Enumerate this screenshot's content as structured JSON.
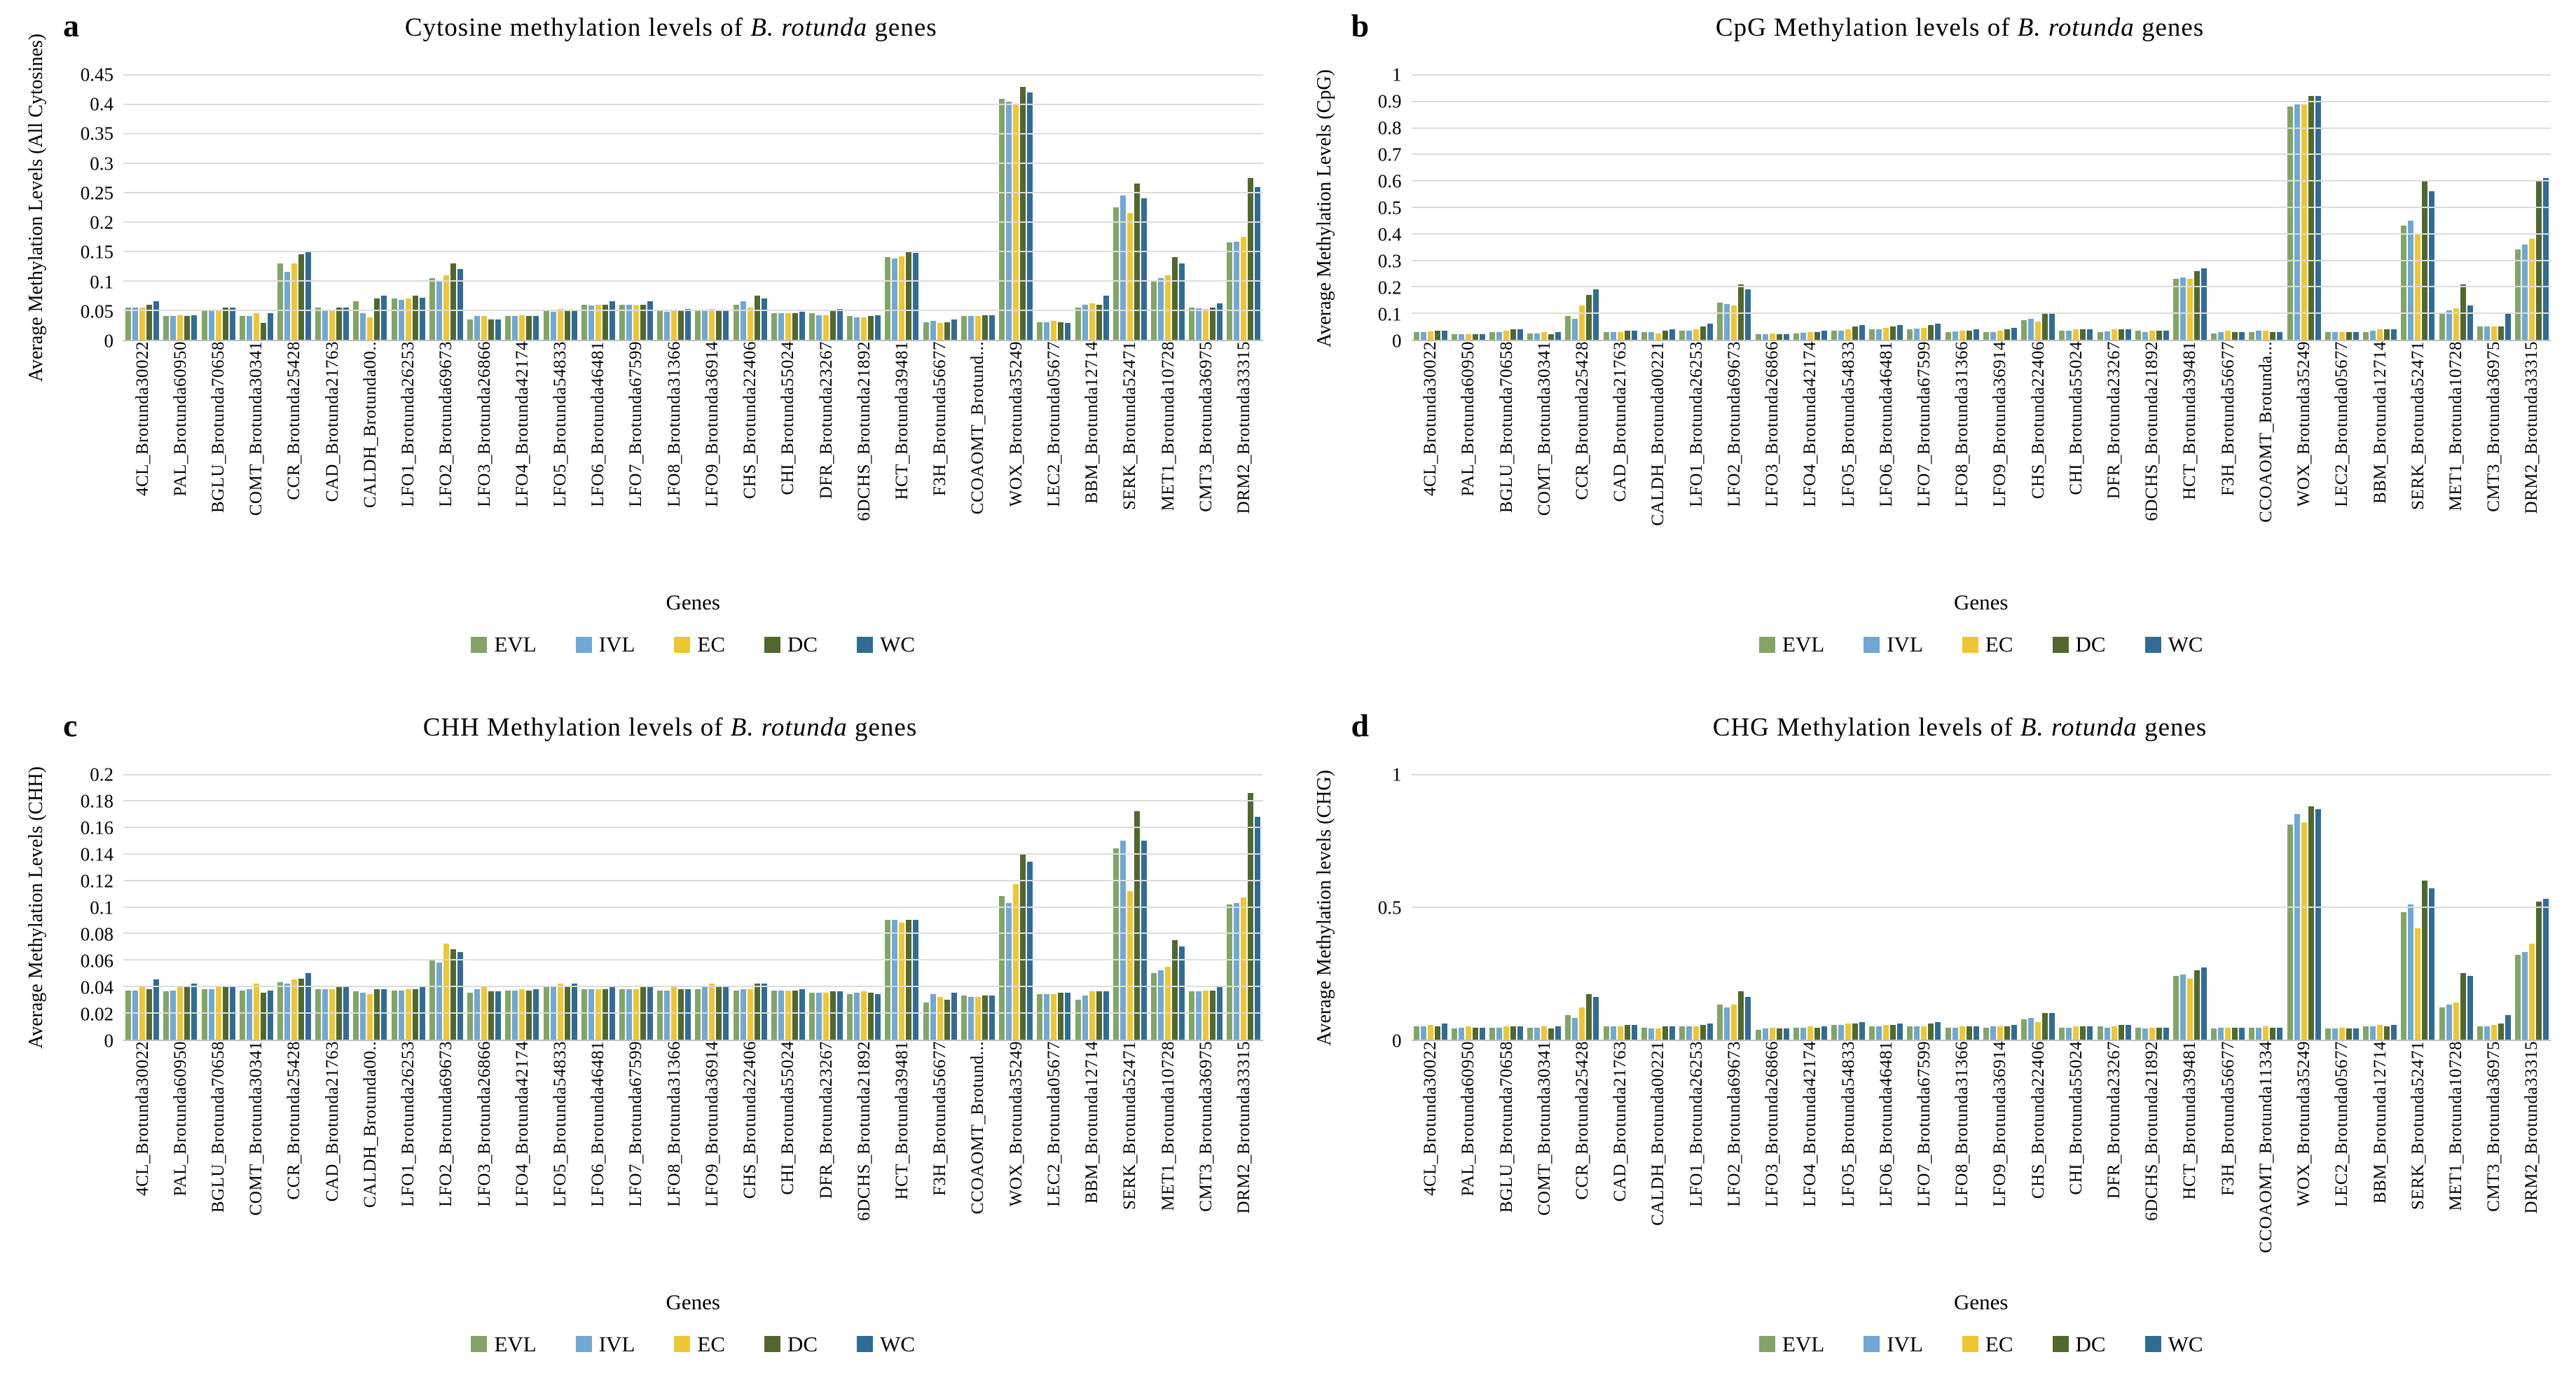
{
  "figure_xlabel": "Genes",
  "legend_labels": [
    "EVL",
    "IVL",
    "EC",
    "DC",
    "WC"
  ],
  "colors": {
    "EVL": "#82A566",
    "IVL": "#6FA8D4",
    "EC": "#EFC631",
    "DC": "#50682E",
    "WC": "#2F6D96",
    "gridline": "#DCDCDC",
    "background": "#FFFFFF",
    "text": "#000000"
  },
  "chart_data": [
    {
      "type": "bar",
      "panel": "a",
      "title": "Cytosine methylation levels of B. rotunda genes",
      "title_prefix": "Cytosine methylation levels of ",
      "title_italic": "B. rotunda",
      "title_suffix": " genes",
      "ylabel": "Average Methylation Levels (All Cytosines)",
      "xlabel": "Genes",
      "ylim": [
        0,
        0.45
      ],
      "yticks": [
        "0",
        "0.05",
        "0.1",
        "0.15",
        "0.2",
        "0.25",
        "0.3",
        "0.35",
        "0.4",
        "0.45"
      ],
      "grid": true,
      "legend_position": "bottom",
      "categories": [
        "4CL_Brotunda30022",
        "PAL_Brotunda60950",
        "BGLU_Brotunda70658",
        "COMT_Brotunda30341",
        "CCR_Brotunda25428",
        "CAD_Brotunda21763",
        "CALDH_Brotunda00..",
        "LFO1_Brotunda26253",
        "LFO2_Brotunda69673",
        "LFO3_Brotunda26866",
        "LFO4_Brotunda42174",
        "LFO5_Brotunda54833",
        "LFO6_Brotunda46481",
        "LFO7_Brotunda67599",
        "LFO8_Brotunda31366",
        "LFO9_Brotunda36914",
        "CHS_Brotunda22406",
        "CHI_Brotunda55024",
        "DFR_Brotunda23267",
        "6DCHS_Brotunda21892",
        "HCT_Brotunda39481",
        "F3H_Brotunda56677",
        "CCOAOMT_Brotund...",
        "WOX_Brotunda35249",
        "LEC2_Brotunda05677",
        "BBM_Brotunda12714",
        "SERK_Brotunda52471",
        "MET1_Brotunda10728",
        "CMT3_Brotunda36975",
        "DRM2_Brotunda33315"
      ],
      "series": [
        {
          "name": "EVL",
          "values": [
            0.055,
            0.04,
            0.05,
            0.04,
            0.13,
            0.055,
            0.065,
            0.07,
            0.105,
            0.035,
            0.04,
            0.05,
            0.06,
            0.06,
            0.05,
            0.05,
            0.06,
            0.045,
            0.045,
            0.04,
            0.14,
            0.03,
            0.04,
            0.41,
            0.03,
            0.055,
            0.225,
            0.1,
            0.055,
            0.165
          ]
        },
        {
          "name": "IVL",
          "values": [
            0.055,
            0.04,
            0.05,
            0.04,
            0.115,
            0.05,
            0.045,
            0.068,
            0.1,
            0.04,
            0.04,
            0.048,
            0.058,
            0.06,
            0.048,
            0.05,
            0.065,
            0.045,
            0.042,
            0.038,
            0.138,
            0.032,
            0.04,
            0.405,
            0.03,
            0.06,
            0.245,
            0.105,
            0.053,
            0.167
          ]
        },
        {
          "name": "EC",
          "values": [
            0.055,
            0.042,
            0.05,
            0.045,
            0.13,
            0.05,
            0.038,
            0.07,
            0.11,
            0.04,
            0.042,
            0.052,
            0.06,
            0.058,
            0.05,
            0.052,
            0.055,
            0.045,
            0.042,
            0.038,
            0.142,
            0.028,
            0.04,
            0.4,
            0.032,
            0.062,
            0.215,
            0.11,
            0.052,
            0.175
          ]
        },
        {
          "name": "DC",
          "values": [
            0.06,
            0.04,
            0.055,
            0.028,
            0.145,
            0.055,
            0.07,
            0.075,
            0.13,
            0.035,
            0.04,
            0.05,
            0.06,
            0.06,
            0.05,
            0.05,
            0.075,
            0.045,
            0.05,
            0.04,
            0.15,
            0.03,
            0.042,
            0.43,
            0.03,
            0.06,
            0.265,
            0.14,
            0.055,
            0.275
          ]
        },
        {
          "name": "WC",
          "values": [
            0.065,
            0.042,
            0.055,
            0.045,
            0.15,
            0.055,
            0.075,
            0.072,
            0.12,
            0.035,
            0.04,
            0.05,
            0.065,
            0.065,
            0.052,
            0.05,
            0.07,
            0.048,
            0.052,
            0.042,
            0.148,
            0.035,
            0.042,
            0.42,
            0.028,
            0.075,
            0.24,
            0.13,
            0.062,
            0.26
          ]
        }
      ]
    },
    {
      "type": "bar",
      "panel": "b",
      "title": "CpG Methylation levels of B. rotunda genes",
      "title_prefix": "CpG Methylation levels of ",
      "title_italic": "B. rotunda",
      "title_suffix": " genes",
      "ylabel": "Average Methylation Levels (CpG)",
      "xlabel": "Genes",
      "ylim": [
        0,
        1
      ],
      "yticks": [
        "0",
        "0.1",
        "0.2",
        "0.3",
        "0.4",
        "0.5",
        "0.6",
        "0.7",
        "0.8",
        "0.9",
        "1"
      ],
      "grid": true,
      "legend_position": "bottom",
      "categories": [
        "4CL_Brotunda30022",
        "PAL_Brotunda60950",
        "BGLU_Brotunda70658",
        "COMT_Brotunda30341",
        "CCR_Brotunda25428",
        "CAD_Brotunda21763",
        "CALDH_Brotunda00221",
        "LFO1_Brotunda26253",
        "LFO2_Brotunda69673",
        "LFO3_Brotunda26866",
        "LFO4_Brotunda42174",
        "LFO5_Brotunda54833",
        "LFO6_Brotunda46481",
        "LFO7_Brotunda67599",
        "LFO8_Brotunda31366",
        "LFO9_Brotunda36914",
        "CHS_Brotunda22406",
        "CHI_Brotunda55024",
        "DFR_Brotunda23267",
        "6DCHS_Brotunda21892",
        "HCT_Brotunda39481",
        "F3H_Brotunda56677",
        "CCOAOMT_Brotunda...",
        "WOX_Brotunda35249",
        "LEC2_Brotunda05677",
        "BBM_Brotunda12714",
        "SERK_Brotunda52471",
        "MET1_Brotunda10728",
        "CMT3_Brotunda36975",
        "DRM2_Brotunda33315"
      ],
      "series": [
        {
          "name": "EVL",
          "values": [
            0.03,
            0.02,
            0.03,
            0.025,
            0.09,
            0.03,
            0.03,
            0.035,
            0.14,
            0.02,
            0.025,
            0.035,
            0.04,
            0.04,
            0.03,
            0.03,
            0.075,
            0.035,
            0.03,
            0.035,
            0.23,
            0.025,
            0.03,
            0.88,
            0.03,
            0.03,
            0.43,
            0.1,
            0.05,
            0.34
          ]
        },
        {
          "name": "IVL",
          "values": [
            0.03,
            0.02,
            0.03,
            0.025,
            0.08,
            0.03,
            0.028,
            0.035,
            0.135,
            0.022,
            0.027,
            0.035,
            0.04,
            0.042,
            0.032,
            0.03,
            0.08,
            0.035,
            0.032,
            0.03,
            0.235,
            0.03,
            0.035,
            0.89,
            0.028,
            0.035,
            0.45,
            0.11,
            0.05,
            0.36
          ]
        },
        {
          "name": "EC",
          "values": [
            0.032,
            0.022,
            0.035,
            0.03,
            0.13,
            0.03,
            0.025,
            0.04,
            0.13,
            0.025,
            0.03,
            0.04,
            0.045,
            0.045,
            0.035,
            0.035,
            0.07,
            0.04,
            0.04,
            0.035,
            0.23,
            0.035,
            0.035,
            0.89,
            0.03,
            0.04,
            0.4,
            0.12,
            0.05,
            0.38
          ]
        },
        {
          "name": "DC",
          "values": [
            0.035,
            0.02,
            0.04,
            0.02,
            0.17,
            0.035,
            0.035,
            0.05,
            0.21,
            0.02,
            0.03,
            0.05,
            0.05,
            0.055,
            0.035,
            0.04,
            0.1,
            0.04,
            0.04,
            0.035,
            0.26,
            0.03,
            0.028,
            0.92,
            0.03,
            0.04,
            0.6,
            0.21,
            0.05,
            0.6
          ]
        },
        {
          "name": "WC",
          "values": [
            0.035,
            0.022,
            0.04,
            0.03,
            0.19,
            0.035,
            0.04,
            0.06,
            0.19,
            0.02,
            0.035,
            0.055,
            0.055,
            0.06,
            0.04,
            0.045,
            0.1,
            0.04,
            0.04,
            0.035,
            0.27,
            0.03,
            0.03,
            0.92,
            0.03,
            0.04,
            0.56,
            0.13,
            0.1,
            0.61
          ]
        }
      ]
    },
    {
      "type": "bar",
      "panel": "c",
      "title": "CHH Methylation levels of B. rotunda genes",
      "title_prefix": "CHH Methylation levels of ",
      "title_italic": "B. rotunda",
      "title_suffix": " genes",
      "ylabel": "Average Methylation Levels (CHH)",
      "xlabel": "Genes",
      "ylim": [
        0,
        0.2
      ],
      "yticks": [
        "0",
        "0.02",
        "0.04",
        "0.06",
        "0.08",
        "0.1",
        "0.12",
        "0.14",
        "0.16",
        "0.18",
        "0.2"
      ],
      "grid": true,
      "legend_position": "bottom",
      "categories": [
        "4CL_Brotunda30022",
        "PAL_Brotunda60950",
        "BGLU_Brotunda70658",
        "COMT_Brotunda30341",
        "CCR_Brotunda25428",
        "CAD_Brotunda21763",
        "CALDH_Brotunda00..",
        "LFO1_Brotunda26253",
        "LFO2_Brotunda69673",
        "LFO3_Brotunda26866",
        "LFO4_Brotunda42174",
        "LFO5_Brotunda54833",
        "LFO6_Brotunda46481",
        "LFO7_Brotunda67599",
        "LFO8_Brotunda31366",
        "LFO9_Brotunda36914",
        "CHS_Brotunda22406",
        "CHI_Brotunda55024",
        "DFR_Brotunda23267",
        "6DCHS_Brotunda21892",
        "HCT_Brotunda39481",
        "F3H_Brotunda56677",
        "CCOAOMT_Brotund...",
        "WOX_Brotunda35249",
        "LEC2_Brotunda05677",
        "BBM_Brotunda12714",
        "SERK_Brotunda52471",
        "MET1_Brotunda10728",
        "CMT3_Brotunda36975",
        "DRM2_Brotunda33315"
      ],
      "series": [
        {
          "name": "EVL",
          "values": [
            0.037,
            0.036,
            0.038,
            0.037,
            0.043,
            0.038,
            0.036,
            0.037,
            0.06,
            0.035,
            0.037,
            0.04,
            0.038,
            0.038,
            0.037,
            0.038,
            0.037,
            0.037,
            0.035,
            0.034,
            0.09,
            0.028,
            0.033,
            0.108,
            0.034,
            0.03,
            0.144,
            0.05,
            0.036,
            0.102
          ]
        },
        {
          "name": "IVL",
          "values": [
            0.037,
            0.037,
            0.038,
            0.038,
            0.042,
            0.038,
            0.035,
            0.037,
            0.058,
            0.038,
            0.037,
            0.04,
            0.038,
            0.038,
            0.037,
            0.04,
            0.038,
            0.037,
            0.035,
            0.035,
            0.09,
            0.034,
            0.032,
            0.103,
            0.034,
            0.033,
            0.15,
            0.052,
            0.036,
            0.103
          ]
        },
        {
          "name": "EC",
          "values": [
            0.04,
            0.04,
            0.04,
            0.042,
            0.045,
            0.038,
            0.034,
            0.038,
            0.072,
            0.04,
            0.038,
            0.042,
            0.038,
            0.038,
            0.04,
            0.042,
            0.038,
            0.037,
            0.035,
            0.036,
            0.088,
            0.032,
            0.032,
            0.117,
            0.034,
            0.036,
            0.112,
            0.055,
            0.037,
            0.107
          ]
        },
        {
          "name": "DC",
          "values": [
            0.038,
            0.04,
            0.04,
            0.035,
            0.046,
            0.04,
            0.038,
            0.038,
            0.068,
            0.036,
            0.037,
            0.04,
            0.038,
            0.04,
            0.038,
            0.04,
            0.042,
            0.037,
            0.036,
            0.035,
            0.09,
            0.03,
            0.033,
            0.14,
            0.035,
            0.036,
            0.172,
            0.075,
            0.037,
            0.186
          ]
        },
        {
          "name": "WC",
          "values": [
            0.045,
            0.042,
            0.04,
            0.037,
            0.05,
            0.04,
            0.038,
            0.04,
            0.066,
            0.036,
            0.038,
            0.042,
            0.04,
            0.04,
            0.038,
            0.04,
            0.042,
            0.038,
            0.036,
            0.034,
            0.09,
            0.035,
            0.033,
            0.134,
            0.035,
            0.036,
            0.15,
            0.07,
            0.04,
            0.168
          ]
        }
      ]
    },
    {
      "type": "bar",
      "panel": "d",
      "title": "CHG Methylation levels of B. rotunda genes",
      "title_prefix": "CHG Methylation levels of ",
      "title_italic": "B. rotunda",
      "title_suffix": " genes",
      "ylabel": "Average Methylation levels (CHG)",
      "xlabel": "Genes",
      "ylim": [
        0,
        1
      ],
      "yticks": [
        "0",
        "0.5",
        "1"
      ],
      "grid": true,
      "legend_position": "bottom",
      "categories": [
        "4CL_Brotunda30022",
        "PAL_Brotunda60950",
        "BGLU_Brotunda70658",
        "COMT_Brotunda30341",
        "CCR_Brotunda25428",
        "CAD_Brotunda21763",
        "CALDH_Brotunda00221",
        "LFO1_Brotunda26253",
        "LFO2_Brotunda69673",
        "LFO3_Brotunda26866",
        "LFO4_Brotunda42174",
        "LFO5_Brotunda54833",
        "LFO6_Brotunda46481",
        "LFO7_Brotunda67599",
        "LFO8_Brotunda31366",
        "LFO9_Brotunda36914",
        "CHS_Brotunda22406",
        "CHI_Brotunda55024",
        "DFR_Brotunda23267",
        "6DCHS_Brotunda21892",
        "HCT_Brotunda39481",
        "F3H_Brotunda56677",
        "CCOAOMT_Brotunda11334",
        "WOX_Brotunda35249",
        "LEC2_Brotunda05677",
        "BBM_Brotunda12714",
        "SERK_Brotunda52471",
        "MET1_Brotunda10728",
        "CMT3_Brotunda36975",
        "DRM2_Brotunda33315"
      ],
      "series": [
        {
          "name": "EVL",
          "values": [
            0.05,
            0.04,
            0.045,
            0.045,
            0.09,
            0.05,
            0.045,
            0.05,
            0.13,
            0.035,
            0.045,
            0.055,
            0.05,
            0.05,
            0.045,
            0.045,
            0.075,
            0.045,
            0.05,
            0.045,
            0.24,
            0.04,
            0.045,
            0.81,
            0.04,
            0.05,
            0.48,
            0.12,
            0.05,
            0.32
          ]
        },
        {
          "name": "IVL",
          "values": [
            0.05,
            0.045,
            0.045,
            0.045,
            0.08,
            0.05,
            0.04,
            0.05,
            0.12,
            0.04,
            0.045,
            0.055,
            0.05,
            0.05,
            0.045,
            0.05,
            0.08,
            0.045,
            0.045,
            0.04,
            0.245,
            0.045,
            0.045,
            0.85,
            0.04,
            0.05,
            0.51,
            0.13,
            0.05,
            0.33
          ]
        },
        {
          "name": "EC",
          "values": [
            0.055,
            0.05,
            0.05,
            0.05,
            0.12,
            0.05,
            0.04,
            0.05,
            0.13,
            0.045,
            0.05,
            0.06,
            0.055,
            0.05,
            0.05,
            0.05,
            0.065,
            0.05,
            0.05,
            0.045,
            0.23,
            0.045,
            0.05,
            0.82,
            0.045,
            0.055,
            0.42,
            0.14,
            0.055,
            0.36
          ]
        },
        {
          "name": "DC",
          "values": [
            0.05,
            0.045,
            0.05,
            0.04,
            0.17,
            0.055,
            0.05,
            0.055,
            0.18,
            0.04,
            0.045,
            0.06,
            0.055,
            0.06,
            0.05,
            0.05,
            0.1,
            0.05,
            0.055,
            0.045,
            0.26,
            0.045,
            0.045,
            0.88,
            0.04,
            0.05,
            0.6,
            0.25,
            0.06,
            0.52
          ]
        },
        {
          "name": "WC",
          "values": [
            0.06,
            0.045,
            0.05,
            0.05,
            0.16,
            0.055,
            0.05,
            0.06,
            0.16,
            0.04,
            0.05,
            0.065,
            0.06,
            0.065,
            0.05,
            0.055,
            0.1,
            0.05,
            0.055,
            0.045,
            0.27,
            0.045,
            0.045,
            0.87,
            0.04,
            0.055,
            0.57,
            0.24,
            0.09,
            0.53
          ]
        }
      ]
    }
  ]
}
